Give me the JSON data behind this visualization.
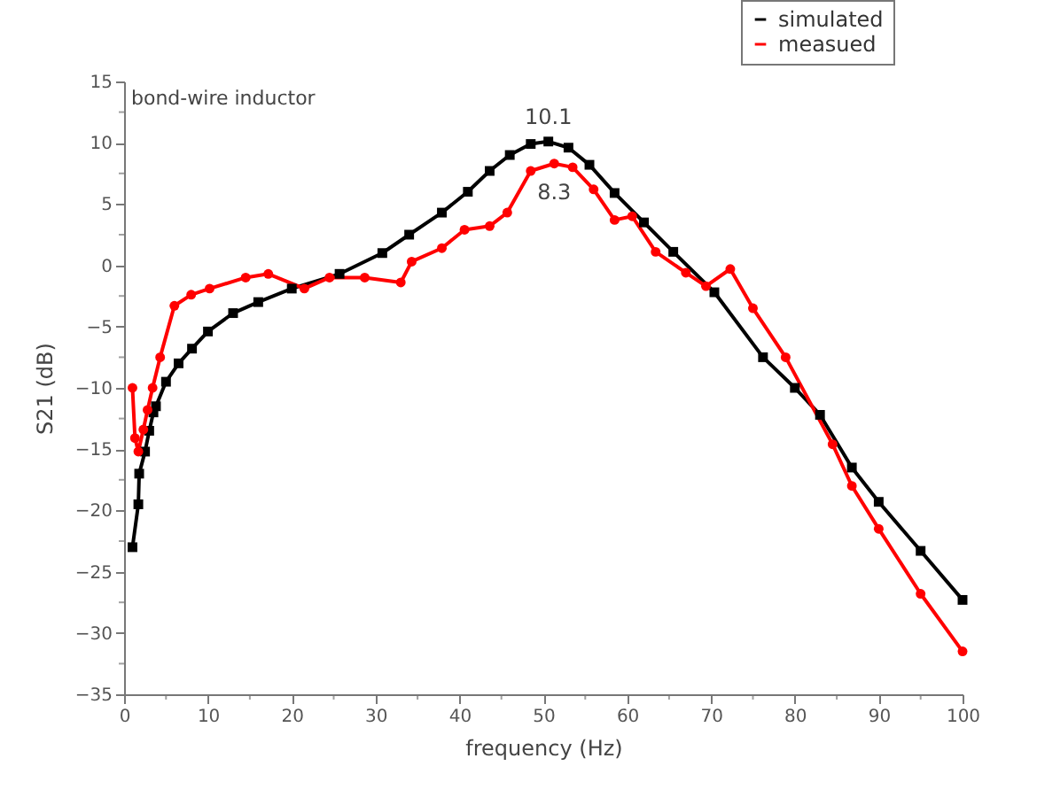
{
  "chart_data": {
    "type": "line",
    "xlabel": "frequency (Hz)",
    "ylabel": "S21 (dB)",
    "xlim": [
      0,
      100
    ],
    "xticks": [
      0,
      10,
      20,
      30,
      40,
      50,
      60,
      70,
      80,
      90,
      100
    ],
    "ylim": [
      -35,
      15
    ],
    "yticks": [
      -35,
      -30,
      -25,
      -20,
      -15,
      -10,
      -5,
      0,
      5,
      10,
      15
    ],
    "grid": false,
    "legend": "top right",
    "line_style": "solid",
    "annotations": [
      "bond-wire inductor",
      {
        "text": "10.1",
        "x": 50.6,
        "y": 10.1
      },
      {
        "text": "8.3",
        "x": 51.3,
        "y": 8.3
      }
    ],
    "series": [
      {
        "name": "simulated",
        "color": "#000000",
        "marker": "square",
        "x": [
          1,
          1.7,
          1.8,
          2.5,
          3,
          3.5,
          3.8,
          5,
          6.5,
          8.1,
          10,
          13,
          16,
          20,
          25.7,
          30.8,
          34,
          37.9,
          41,
          43.6,
          46,
          48.5,
          50.6,
          53,
          55.5,
          58.5,
          62,
          65.5,
          70.4,
          76.2,
          80,
          83,
          86.8,
          90,
          95,
          100
        ],
        "values": [
          -23,
          -19.5,
          -17,
          -15.2,
          -13.5,
          -12,
          -11.5,
          -9.5,
          -8,
          -6.8,
          -5.4,
          -3.9,
          -3,
          -1.9,
          -0.7,
          1,
          2.5,
          4.3,
          6,
          7.7,
          9,
          9.9,
          10.1,
          9.6,
          8.2,
          5.9,
          3.5,
          1.1,
          -2.2,
          -7.5,
          -10,
          -12.2,
          -16.5,
          -19.3,
          -23.3,
          -27.3
        ]
      },
      {
        "name": "measued",
        "color": "#ff0000",
        "marker": "circle",
        "x": [
          1,
          1.3,
          1.7,
          2.3,
          2.8,
          3.4,
          4.3,
          6,
          8,
          10.2,
          14.5,
          17.2,
          21.5,
          24.5,
          28.7,
          33,
          34.3,
          37.9,
          40.6,
          43.6,
          45.7,
          48.5,
          51.3,
          53.5,
          56,
          58.5,
          60.6,
          63.4,
          67,
          69.4,
          72.3,
          75,
          78.9,
          84.5,
          86.8,
          90,
          95,
          100
        ],
        "values": [
          -10,
          -14.1,
          -15.2,
          -13.4,
          -11.8,
          -10,
          -7.5,
          -3.3,
          -2.4,
          -1.9,
          -1,
          -0.7,
          -1.9,
          -1,
          -1,
          -1.4,
          0.3,
          1.4,
          2.9,
          3.2,
          4.3,
          7.7,
          8.3,
          8,
          6.2,
          3.7,
          4,
          1.1,
          -0.6,
          -1.7,
          -0.3,
          -3.5,
          -7.5,
          -14.6,
          -18,
          -21.5,
          -26.8,
          -31.5
        ]
      }
    ]
  }
}
